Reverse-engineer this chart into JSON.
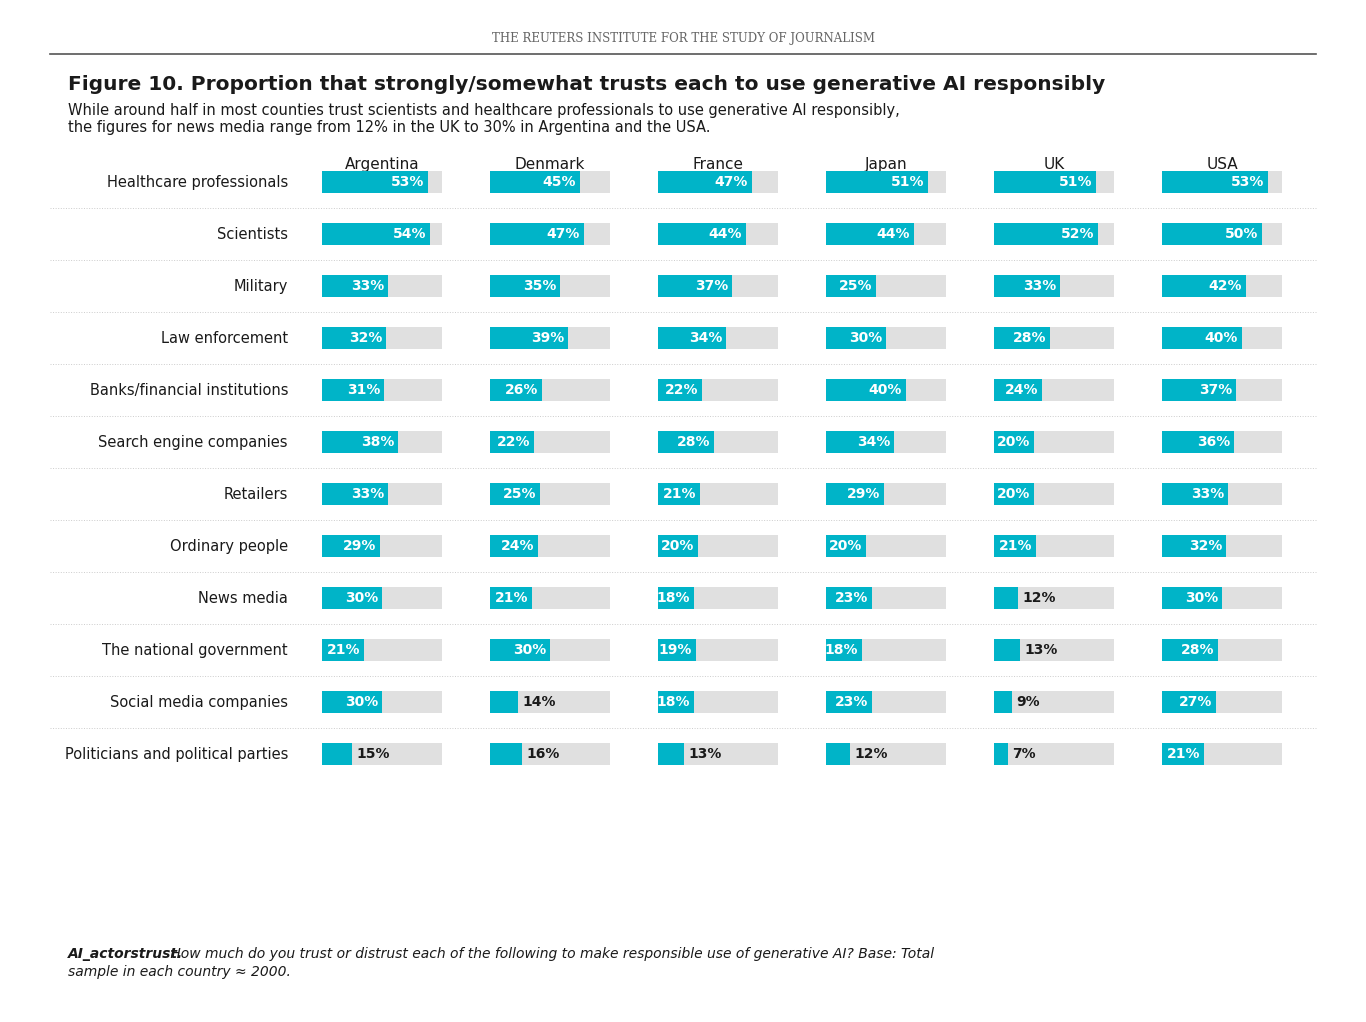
{
  "header": "THE REUTERS INSTITUTE FOR THE STUDY OF JOURNALISM",
  "title": "Figure 10. Proportion that strongly/somewhat trusts each to use generative AI responsibly",
  "subtitle_line1": "While around half in most counties trust scientists and healthcare professionals to use generative AI responsibly,",
  "subtitle_line2": "the figures for news media range from 12% in the UK to 30% in Argentina and the USA.",
  "footnote_bold": "AI_actorstrust.",
  "footnote_rest": " How much do you trust or distrust each of the following to make responsible use of generative AI? Base: Total",
  "footnote_line2": "sample in each country ≈ 2000.",
  "countries": [
    "Argentina",
    "Denmark",
    "France",
    "Japan",
    "UK",
    "USA"
  ],
  "categories": [
    "Healthcare professionals",
    "Scientists",
    "Military",
    "Law enforcement",
    "Banks/financial institutions",
    "Search engine companies",
    "Retailers",
    "Ordinary people",
    "News media",
    "The national government",
    "Social media companies",
    "Politicians and political parties"
  ],
  "data": {
    "Healthcare professionals": [
      53,
      45,
      47,
      51,
      51,
      53
    ],
    "Scientists": [
      54,
      47,
      44,
      44,
      52,
      50
    ],
    "Military": [
      33,
      35,
      37,
      25,
      33,
      42
    ],
    "Law enforcement": [
      32,
      39,
      34,
      30,
      28,
      40
    ],
    "Banks/financial institutions": [
      31,
      26,
      22,
      40,
      24,
      37
    ],
    "Search engine companies": [
      38,
      22,
      28,
      34,
      20,
      36
    ],
    "Retailers": [
      33,
      25,
      21,
      29,
      20,
      33
    ],
    "Ordinary people": [
      29,
      24,
      20,
      20,
      21,
      32
    ],
    "News media": [
      30,
      21,
      18,
      23,
      12,
      30
    ],
    "The national government": [
      21,
      30,
      19,
      18,
      13,
      28
    ],
    "Social media companies": [
      30,
      14,
      18,
      23,
      9,
      27
    ],
    "Politicians and political parties": [
      15,
      16,
      13,
      12,
      7,
      21
    ]
  },
  "bar_color": "#00b4c8",
  "bar_bg_color": "#e0e0e0",
  "text_color_white": "#ffffff",
  "text_color_dark": "#1a1a1a",
  "background_color": "#ffffff",
  "header_color": "#666666",
  "title_color": "#1a1a1a",
  "sep_color": "#cccccc",
  "line_color": "#555555"
}
